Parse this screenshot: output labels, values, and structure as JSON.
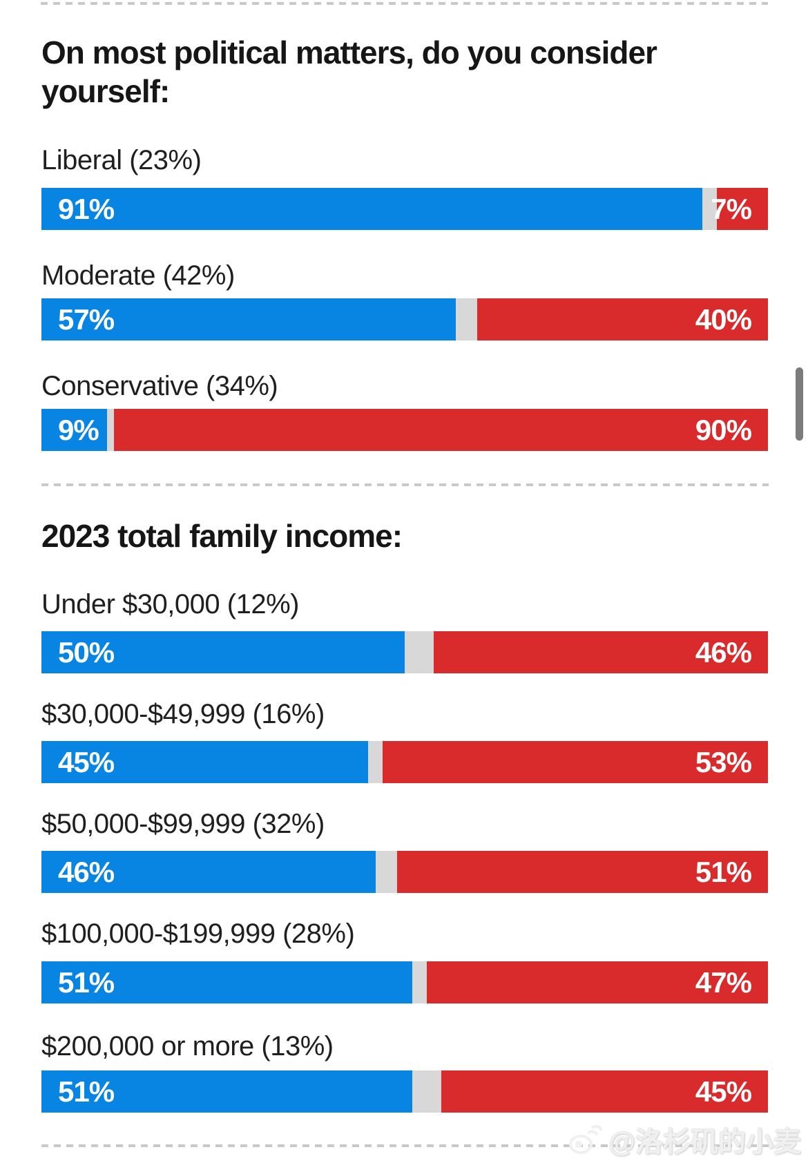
{
  "colors": {
    "dem": "#0885e2",
    "rep": "#d92a2c",
    "gap": "#d8d8d8",
    "dash": "#c9c9c9",
    "scrollbar": "#7c7c7c",
    "heading": "#161616",
    "label": "#1f1f1f",
    "bar_text": "#ffffff"
  },
  "sections": [
    {
      "title": "On most political matters, do you consider yourself:",
      "rows": [
        {
          "label": "Liberal (23%)",
          "dem": 91,
          "rep": 7,
          "dem_label": "91%",
          "rep_label": "7%"
        },
        {
          "label": "Moderate (42%)",
          "dem": 57,
          "rep": 40,
          "dem_label": "57%",
          "rep_label": "40%"
        },
        {
          "label": "Conservative (34%)",
          "dem": 9,
          "rep": 90,
          "dem_label": "9%",
          "rep_label": "90%"
        }
      ]
    },
    {
      "title": "2023 total family income:",
      "rows": [
        {
          "label": "Under $30,000 (12%)",
          "dem": 50,
          "rep": 46,
          "dem_label": "50%",
          "rep_label": "46%"
        },
        {
          "label": "$30,000-$49,999 (16%)",
          "dem": 45,
          "rep": 53,
          "dem_label": "45%",
          "rep_label": "53%"
        },
        {
          "label": "$50,000-$99,999 (32%)",
          "dem": 46,
          "rep": 51,
          "dem_label": "46%",
          "rep_label": "51%"
        },
        {
          "label": "$100,000-$199,999 (28%)",
          "dem": 51,
          "rep": 47,
          "dem_label": "51%",
          "rep_label": "47%"
        },
        {
          "label": "$200,000 or more (13%)",
          "dem": 51,
          "rep": 45,
          "dem_label": "51%",
          "rep_label": "45%"
        }
      ]
    }
  ],
  "watermark": {
    "text": "@洛杉矶的小麦"
  },
  "chart_data": [
    {
      "type": "bar",
      "stacked": true,
      "orientation": "horizontal",
      "title": "On most political matters, do you consider yourself:",
      "categories": [
        "Liberal (23%)",
        "Moderate (42%)",
        "Conservative (34%)"
      ],
      "series": [
        {
          "name": "blue",
          "color": "#0885e2",
          "values": [
            91,
            57,
            9
          ]
        },
        {
          "name": "red",
          "color": "#d92a2c",
          "values": [
            7,
            40,
            90
          ]
        }
      ],
      "xlim": [
        0,
        100
      ],
      "units": "%",
      "grid": false,
      "legend": "none",
      "value_labels": "inside"
    },
    {
      "type": "bar",
      "stacked": true,
      "orientation": "horizontal",
      "title": "2023 total family income:",
      "categories": [
        "Under $30,000 (12%)",
        "$30,000-$49,999 (16%)",
        "$50,000-$99,999 (32%)",
        "$100,000-$199,999 (28%)",
        "$200,000 or more (13%)"
      ],
      "series": [
        {
          "name": "blue",
          "color": "#0885e2",
          "values": [
            50,
            45,
            46,
            51,
            51
          ]
        },
        {
          "name": "red",
          "color": "#d92a2c",
          "values": [
            46,
            53,
            51,
            47,
            45
          ]
        }
      ],
      "xlim": [
        0,
        100
      ],
      "units": "%",
      "grid": false,
      "legend": "none",
      "value_labels": "inside"
    }
  ]
}
